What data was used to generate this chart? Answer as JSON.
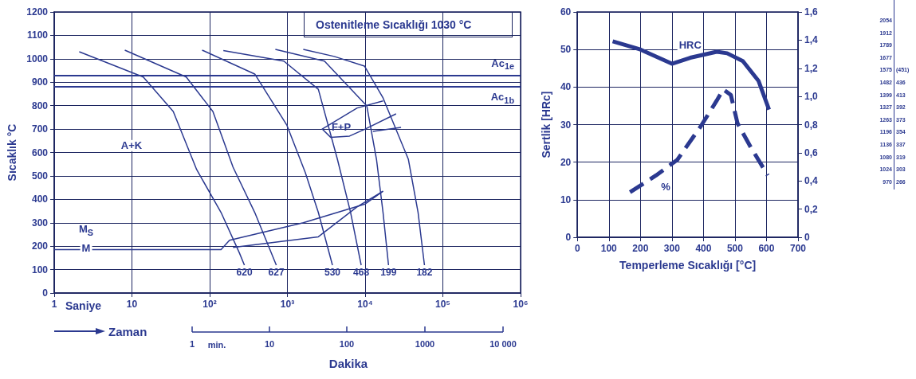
{
  "chart_data": [
    {
      "type": "line",
      "xlabel": "Saniye",
      "ylabel": "Sıcaklık °C",
      "log": "x",
      "grid": true,
      "xlim": [
        1,
        1000000
      ],
      "xticks": [
        1,
        10,
        {
          "value": 100,
          "label": "10²"
        },
        {
          "value": 1000,
          "label": "10³"
        },
        {
          "value": 10000,
          "label": "10⁴"
        },
        {
          "value": 100000,
          "label": "10⁵"
        },
        {
          "value": 1000000,
          "label": "10⁶"
        }
      ],
      "ylim": [
        0,
        1200
      ],
      "yticks": [
        0,
        100,
        200,
        300,
        400,
        500,
        600,
        700,
        800,
        900,
        1000,
        1100,
        1200
      ],
      "series": [
        {
          "name": "620",
          "color": "#2b3990",
          "x": [
            2.1,
            14,
            34,
            68,
            140,
            240,
            280
          ],
          "values": [
            1030,
            922,
            775,
            527,
            344,
            173,
            119
          ]
        },
        {
          "name": "627",
          "color": "#2b3990",
          "x": [
            8.1,
            50,
            110,
            200,
            380,
            720
          ],
          "values": [
            1037,
            922,
            775,
            537,
            344,
            119
          ]
        },
        {
          "name": "530",
          "color": "#2b3990",
          "x": [
            80,
            380,
            980,
            1700,
            2500,
            3800
          ],
          "values": [
            1037,
            935,
            718,
            514,
            344,
            119
          ]
        },
        {
          "name": "468",
          "color": "#2b3990",
          "x": [
            150,
            900,
            2500,
            4400,
            6500,
            8900
          ],
          "values": [
            1035,
            990,
            870,
            571,
            344,
            119
          ]
        },
        {
          "name": "199",
          "color": "#2b3990",
          "x": [
            700,
            3000,
            10500,
            14000,
            17000,
            20000
          ],
          "values": [
            1040,
            990,
            799,
            571,
            344,
            119
          ]
        },
        {
          "name": "182",
          "color": "#2b3990",
          "x": [
            1600,
            4000,
            9800,
            17000,
            36000,
            48000,
            58000
          ],
          "values": [
            1040,
            1010,
            969,
            833,
            571,
            344,
            119
          ]
        },
        {
          "color": "#2b3990",
          "x": [
            1,
            140,
            180,
            1600,
            10000,
            17000
          ],
          "values": [
            185,
            185,
            225,
            300,
            380,
            435
          ]
        },
        {
          "color": "#2b3990",
          "x": [
            200,
            2500,
            7800,
            17000
          ],
          "values": [
            195,
            240,
            367,
            435
          ]
        },
        {
          "color": "#2b3990",
          "x": [
            17000,
            7900,
            2800,
            3600,
            6300,
            10000,
            25000
          ],
          "values": [
            820,
            790,
            700,
            665,
            670,
            700,
            765
          ]
        },
        {
          "color": "#2b3990",
          "x": [
            12600,
            29000
          ],
          "values": [
            690,
            707
          ]
        }
      ],
      "ref_lines": [
        {
          "axis": "y",
          "value": 930,
          "label": "Ac$_{1e}$"
        },
        {
          "axis": "y",
          "value": 880,
          "label": "Ac$_{1b}$"
        }
      ],
      "annotations": [
        "Ostenitleme Sıcaklığı 1030 °C",
        "A+K",
        "F+P",
        "M$_{S}$",
        "M",
        "Zaman",
        "min.",
        "1",
        "10",
        "100",
        "1000",
        "10 000",
        "Dakika"
      ]
    },
    {
      "type": "line",
      "xlabel": "Temperleme Sıcaklığı [°C]",
      "ylabel": "Sertlik [HRc]",
      "grid": true,
      "xlim": [
        0,
        700
      ],
      "xticks": [
        0,
        100,
        200,
        300,
        400,
        500,
        600,
        700
      ],
      "ylim": [
        0,
        60
      ],
      "yticks": [
        0,
        10,
        20,
        30,
        40,
        50,
        60
      ],
      "y2lim": [
        0,
        1.6
      ],
      "y2ticks": [
        0,
        {
          "value": 0.2,
          "label": "0,2"
        },
        {
          "value": 0.4,
          "label": "0,4"
        },
        {
          "value": 0.6,
          "label": "0,6"
        },
        {
          "value": 0.8,
          "label": "0,8"
        },
        {
          "value": 1.0,
          "label": "1,0"
        },
        {
          "value": 1.2,
          "label": "1,2"
        },
        {
          "value": 1.4,
          "label": "1,4"
        },
        {
          "value": 1.6,
          "label": "1,6"
        }
      ],
      "series": [
        {
          "name": "HRC",
          "color": "#2b3990",
          "x": [
            112,
            200,
            300,
            358,
            442,
            475,
            525,
            575,
            608
          ],
          "values": [
            52.2,
            50,
            46.2,
            47.8,
            49.4,
            49,
            46.9,
            41.6,
            34
          ]
        },
        {
          "name": "%",
          "color": "#2b3990",
          "axis": "y2",
          "line_style": "dashed",
          "x": [
            167,
            250,
            317,
            392,
            442,
            463,
            487,
            508,
            550,
            604
          ],
          "values": [
            0.32,
            0.44,
            0.55,
            0.79,
            0.97,
            1.05,
            1.01,
            0.81,
            0.64,
            0.44
          ]
        }
      ]
    },
    {
      "type": "other",
      "annotations": [
        "2054",
        "1912",
        "1789",
        "1677",
        "1575 (451)",
        "1482 436",
        "1399 413",
        "1327 392",
        "1263 373",
        "1196 354",
        "1136 337",
        "1080 319",
        "1024 303",
        "970 266"
      ]
    }
  ]
}
